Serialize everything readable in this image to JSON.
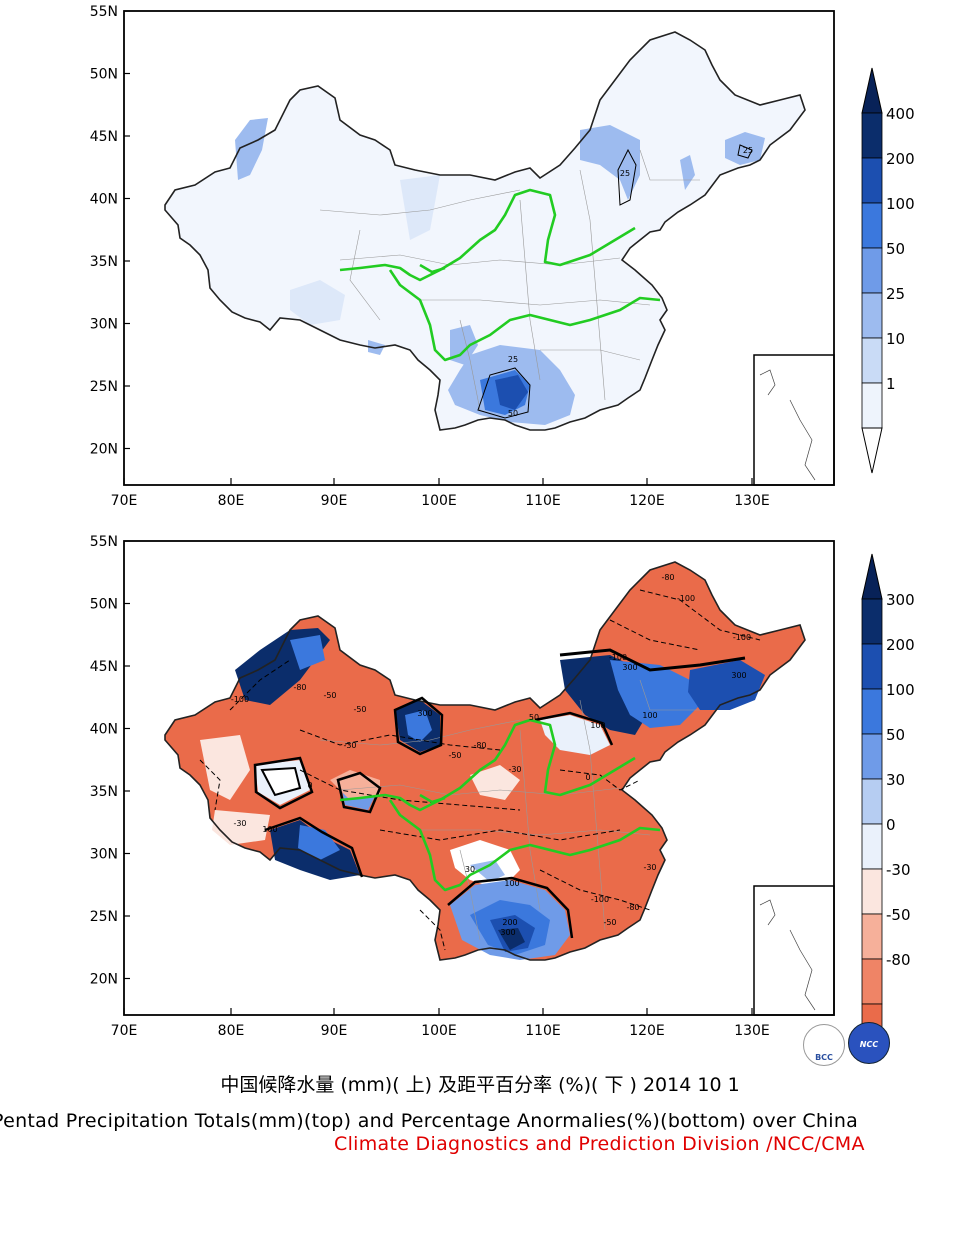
{
  "top_map": {
    "lat_labels": [
      "55N",
      "50N",
      "45N",
      "40N",
      "35N",
      "30N",
      "25N",
      "20N"
    ],
    "lon_labels": [
      "70E",
      "80E",
      "90E",
      "100E",
      "110E",
      "120E",
      "130E"
    ],
    "contour_labels": [
      "25",
      "25",
      "25",
      "50"
    ],
    "colorbar": {
      "labels": [
        "400",
        "200",
        "100",
        "50",
        "25",
        "10",
        "1"
      ],
      "colors": [
        "#0b2d6b",
        "#1c4fb0",
        "#3b78dd",
        "#6f9be8",
        "#9dbbef",
        "#c9dbf6",
        "#eef4fc"
      ],
      "over_color": "#082258",
      "under_color": "#ffffff"
    }
  },
  "bottom_map": {
    "lat_labels": [
      "55N",
      "50N",
      "45N",
      "40N",
      "35N",
      "30N",
      "25N",
      "20N"
    ],
    "lon_labels": [
      "70E",
      "80E",
      "90E",
      "100E",
      "110E",
      "120E",
      "130E"
    ],
    "contour_labels": [
      "-80",
      "-100",
      "-100",
      "-100",
      "300",
      "100",
      "300",
      "-100",
      "-80",
      "-50",
      "100",
      "-30",
      "-50",
      "0",
      "-30",
      "300",
      "100",
      "-80",
      "-50",
      "-30",
      "100",
      "200",
      "300",
      "-100",
      "-80",
      "-50",
      "-30",
      "50",
      "30",
      "0"
    ],
    "colorbar": {
      "labels": [
        "300",
        "200",
        "100",
        "50",
        "30",
        "0",
        "-30",
        "-50",
        "-80"
      ],
      "colors": [
        "#0b2d6b",
        "#1c4fb0",
        "#3b78dd",
        "#6f9be8",
        "#b6cdf2",
        "#eaf1fb",
        "#fbe6df",
        "#f6b09a",
        "#ef8466",
        "#ea6b4a"
      ],
      "over_color": "#082258",
      "under_color": "#e4532f"
    }
  },
  "footer": {
    "title_cn": "中国候降水量 (mm)( 上) 及距平百分率 (%)( 下 ) 2014 10 1",
    "title_en": "Pentad Precipitation Totals(mm)(top) and Percentage Anormalies(%)(bottom) over China",
    "org": "Climate Diagnostics and Prediction Division /NCC/CMA",
    "logo_left": "BCC",
    "logo_right": "NCC"
  }
}
